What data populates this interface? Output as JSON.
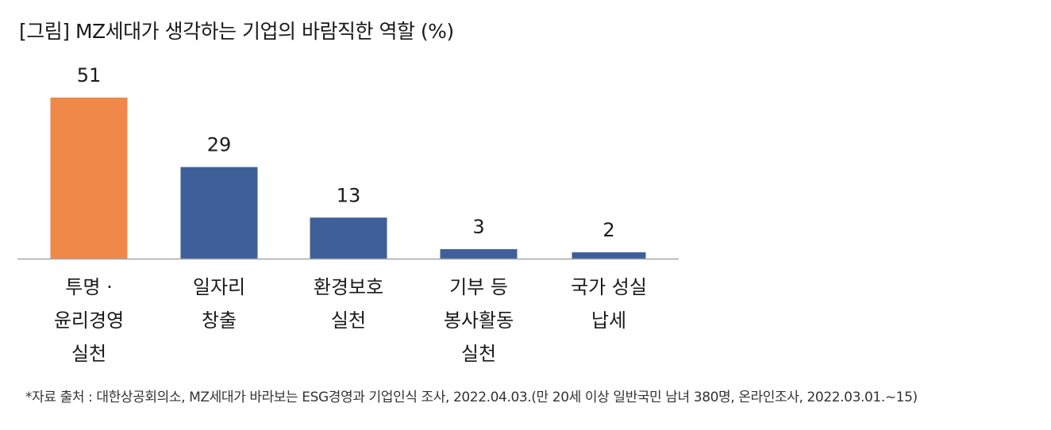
{
  "title": "[그림] MZ세대가 생각하는 기업의 바람직한 역할 (%)",
  "source_note": "*자료 출처 : 대한상공회의소, MZ세대가 바라보는 ESG경영과 기업인식 조사, 2022.04.03.(만 20세 이상 일반국민 남녀 380명, 온라인조사, 2022.03.01.~15)",
  "colors": {
    "highlight": "#F0884A",
    "bar": "#3F5F99",
    "axis": "#A6A6A6",
    "text": "#1A1A1A"
  },
  "chart_data": {
    "type": "bar",
    "title": "[그림] MZ세대가 생각하는 기업의 바람직한 역할 (%)",
    "xlabel": "",
    "ylabel": "",
    "ylim": [
      0,
      51
    ],
    "grid": false,
    "legend": "none",
    "categories": [
      [
        "투명 ·",
        "윤리경영",
        "실천"
      ],
      [
        "일자리",
        "창출"
      ],
      [
        "환경보호",
        "실천"
      ],
      [
        "기부 등",
        "봉사활동",
        "실천"
      ],
      [
        "국가 성실",
        "납세"
      ]
    ],
    "values": [
      51,
      29,
      13,
      3,
      2
    ],
    "highlight_index": 0
  }
}
